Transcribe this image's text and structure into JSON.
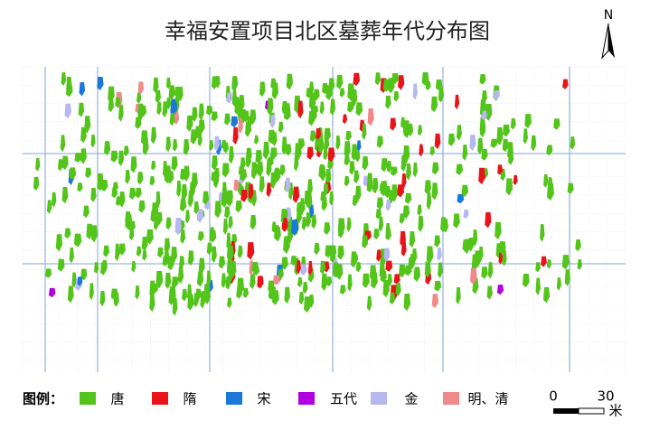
{
  "title": "幸福安置项目北区墓葬年代分布图",
  "north": "N",
  "legend": {
    "label": "图例：",
    "items": [
      {
        "name": "唐",
        "color": "#52c41a"
      },
      {
        "name": "隋",
        "color": "#e8141a"
      },
      {
        "name": "宋",
        "color": "#1a78d8"
      },
      {
        "name": "五代",
        "color": "#b000e0"
      },
      {
        "name": "金",
        "color": "#b8b8f0"
      },
      {
        "name": "明、清",
        "color": "#f08a8a"
      }
    ]
  },
  "scale": {
    "start": "0",
    "end": "30",
    "unit": "米"
  }
}
